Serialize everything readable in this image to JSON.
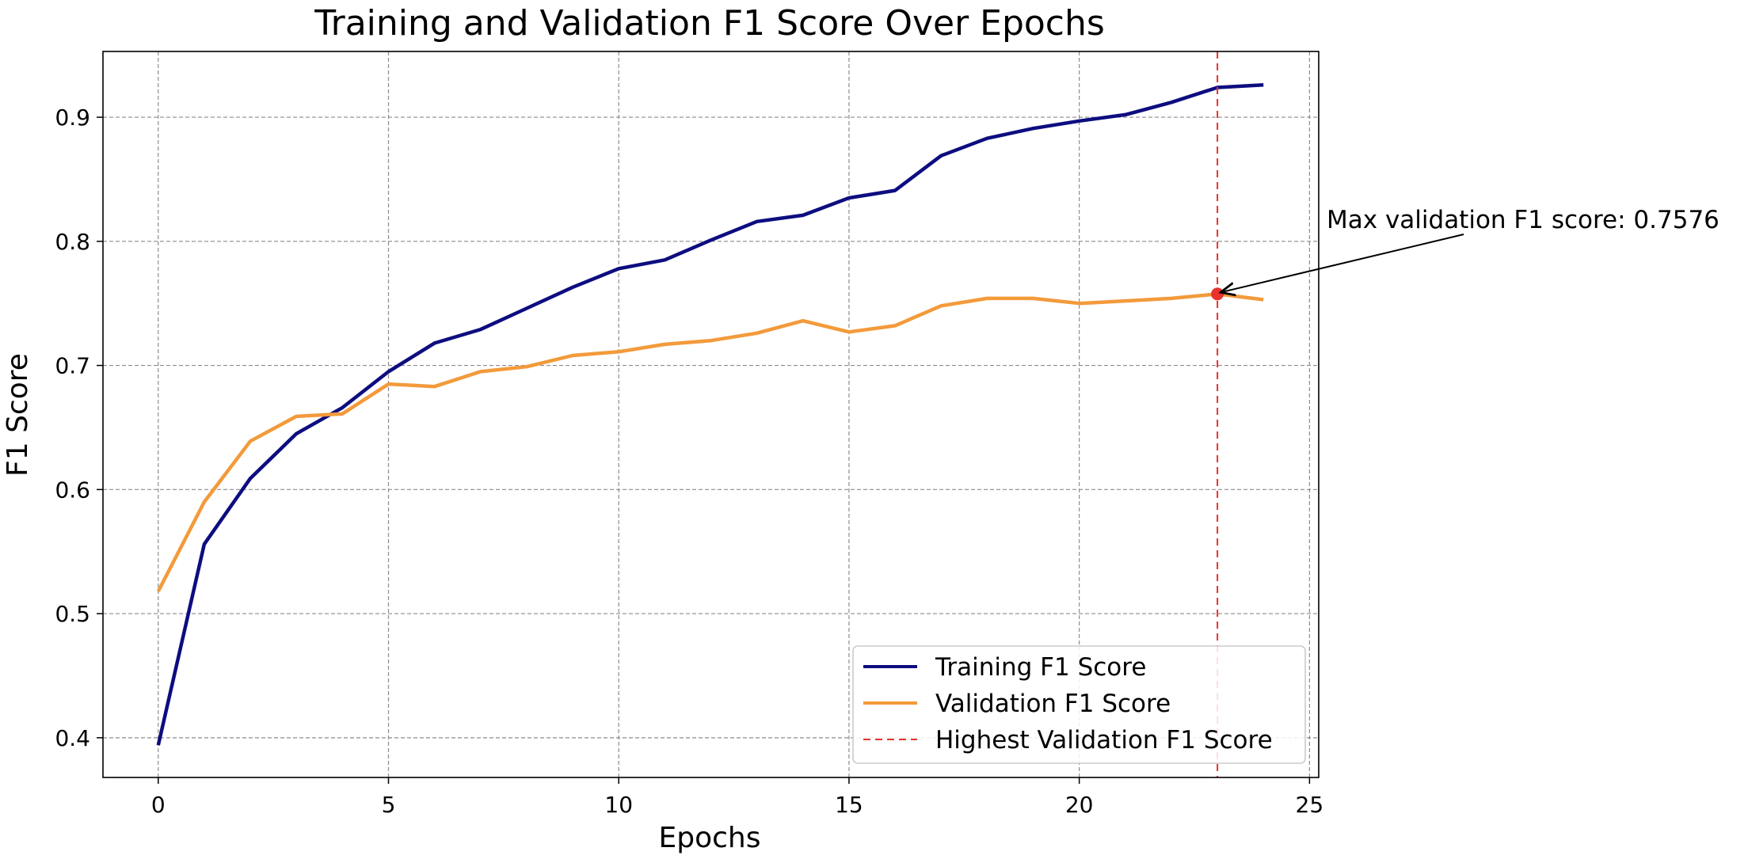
{
  "chart_data": {
    "type": "line",
    "title": "Training and Validation F1 Score Over Epochs",
    "xlabel": "Epochs",
    "ylabel": "F1 Score",
    "xlim": [
      -1.2,
      25.2
    ],
    "ylim": [
      0.368,
      0.953
    ],
    "xticks": [
      0,
      5,
      10,
      15,
      20,
      25
    ],
    "yticks": [
      0.4,
      0.5,
      0.6,
      0.7,
      0.8,
      0.9
    ],
    "xtick_labels": [
      "0",
      "5",
      "10",
      "15",
      "20",
      "25"
    ],
    "ytick_labels": [
      "0.4",
      "0.5",
      "0.6",
      "0.7",
      "0.8",
      "0.9"
    ],
    "grid": true,
    "legend_position": "lower-right",
    "x": [
      0,
      1,
      2,
      3,
      4,
      5,
      6,
      7,
      8,
      9,
      10,
      11,
      12,
      13,
      14,
      15,
      16,
      17,
      18,
      19,
      20,
      21,
      22,
      23,
      24
    ],
    "series": [
      {
        "name": "Training F1 Score",
        "color": "#0d0d80",
        "style": "solid",
        "values": [
          0.394,
          0.556,
          0.609,
          0.645,
          0.666,
          0.695,
          0.718,
          0.729,
          0.746,
          0.763,
          0.778,
          0.785,
          0.801,
          0.816,
          0.821,
          0.835,
          0.841,
          0.869,
          0.883,
          0.891,
          0.897,
          0.902,
          0.912,
          0.924,
          0.926
        ]
      },
      {
        "name": "Validation F1 Score",
        "color": "#f39a3b",
        "style": "solid",
        "values": [
          0.518,
          0.59,
          0.639,
          0.659,
          0.661,
          0.685,
          0.683,
          0.695,
          0.699,
          0.708,
          0.711,
          0.717,
          0.72,
          0.726,
          0.736,
          0.727,
          0.732,
          0.748,
          0.754,
          0.754,
          0.75,
          0.752,
          0.754,
          0.7576,
          0.753
        ]
      }
    ],
    "vline": {
      "name": "Highest Validation F1 Score",
      "x": 23,
      "color": "#e8322d",
      "style": "dashed"
    },
    "highlight_point": {
      "x": 23,
      "y": 0.7576,
      "color": "#e8322d"
    },
    "annotation": {
      "text": "Max validation F1 score: 0.7576",
      "color": "#e8322d"
    }
  }
}
